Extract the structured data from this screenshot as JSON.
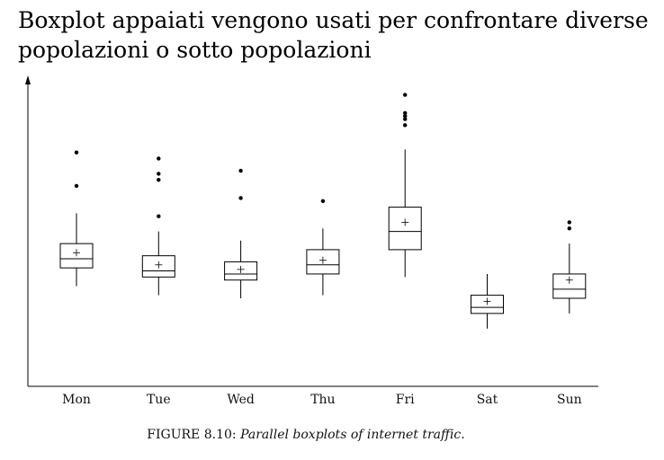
{
  "slide": {
    "title": "Boxplot appaiati vengono usati per confrontare diverse popolazioni o sotto popolazioni"
  },
  "caption": {
    "label": "FIGURE 8.10:",
    "text": "Parallel boxplots of internet traffic."
  },
  "colors": {
    "ink": "#000000",
    "background": "#ffffff"
  },
  "chart_data": {
    "type": "boxplot",
    "title": "",
    "xlabel": "",
    "ylabel": "",
    "ylim": [
      0,
      100
    ],
    "grid": false,
    "legend": "none",
    "categories": [
      "Mon",
      "Tue",
      "Wed",
      "Thu",
      "Fri",
      "Sat",
      "Sun"
    ],
    "boxes": [
      {
        "category": "Mon",
        "whisker_low": 33,
        "q1": 39,
        "median": 42,
        "q3": 47,
        "whisker_high": 57,
        "mean": 44,
        "outliers": [
          66,
          77
        ]
      },
      {
        "category": "Tue",
        "whisker_low": 30,
        "q1": 36,
        "median": 38,
        "q3": 43,
        "whisker_high": 51,
        "mean": 40,
        "outliers": [
          56,
          68,
          70,
          75
        ]
      },
      {
        "category": "Wed",
        "whisker_low": 29,
        "q1": 35,
        "median": 37,
        "q3": 41,
        "whisker_high": 48,
        "mean": 38.5,
        "outliers": [
          62,
          71
        ]
      },
      {
        "category": "Thu",
        "whisker_low": 30,
        "q1": 37,
        "median": 40,
        "q3": 45,
        "whisker_high": 52,
        "mean": 41.5,
        "outliers": [
          61
        ]
      },
      {
        "category": "Fri",
        "whisker_low": 36,
        "q1": 45,
        "median": 51,
        "q3": 59,
        "whisker_high": 78,
        "mean": 54,
        "outliers": [
          86,
          88,
          89,
          90,
          96
        ]
      },
      {
        "category": "Sat",
        "whisker_low": 19,
        "q1": 24,
        "median": 26,
        "q3": 30,
        "whisker_high": 37,
        "mean": 28,
        "outliers": []
      },
      {
        "category": "Sun",
        "whisker_low": 24,
        "q1": 29,
        "median": 32,
        "q3": 37,
        "whisker_high": 47,
        "mean": 35,
        "outliers": [
          52,
          54
        ]
      }
    ]
  }
}
